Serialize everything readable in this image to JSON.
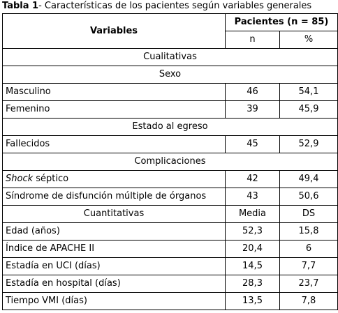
{
  "caption": {
    "label": "Tabla 1",
    "text": "- Características de los pacientes según variables generales"
  },
  "header": {
    "variables": "Variables",
    "patients": "Pacientes (n = 85)",
    "n": "n",
    "percent": "%"
  },
  "sections": {
    "cualitativas": "Cualitativas",
    "sexo": "Sexo",
    "estado": "Estado al egreso",
    "complicaciones": "Complicaciones"
  },
  "rows": {
    "masculino": {
      "label": "Masculino",
      "n": "46",
      "pct": "54,1"
    },
    "femenino": {
      "label": "Femenino",
      "n": "39",
      "pct": "45,9"
    },
    "fallecidos": {
      "label": "Fallecidos",
      "n": "45",
      "pct": "52,9"
    },
    "shock": {
      "label_italic": "Shock",
      "label_rest": " séptico",
      "n": "42",
      "pct": "49,4"
    },
    "sdmo": {
      "label": "Síndrome de disfunción múltiple de órganos",
      "n": "43",
      "pct": "50,6"
    }
  },
  "cuantitativas": {
    "label": "Cuantitativas",
    "media": "Media",
    "ds": "DS"
  },
  "quant_rows": {
    "edad": {
      "label": "Edad (años)",
      "media": "52,3",
      "ds": "15,8"
    },
    "apache": {
      "label": "Índice de APACHE II",
      "media": "20,4",
      "ds": "6"
    },
    "uci": {
      "label": "Estadía en UCI (días)",
      "media": "14,5",
      "ds": "7,7"
    },
    "hospital": {
      "label": "Estadía en hospital (días)",
      "media": "28,3",
      "ds": "23,7"
    },
    "vmi": {
      "label": "Tiempo VMI (días)",
      "media": "13,5",
      "ds": "7,8"
    }
  }
}
